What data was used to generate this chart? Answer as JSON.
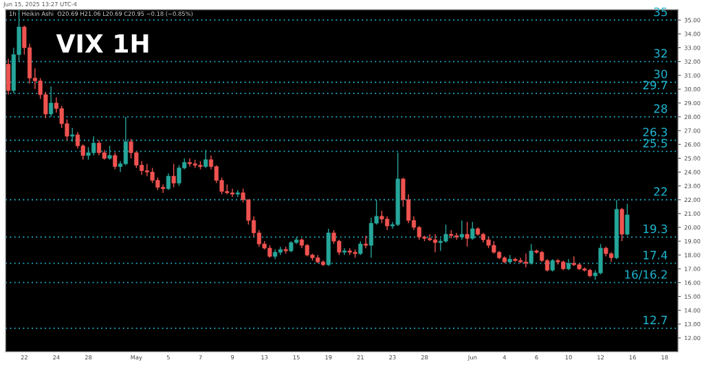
{
  "chart_data": {
    "type": "candlestick",
    "title": "VIX 1H",
    "annotations": [
      "Jun 15, 2025 13:27 UTC-4",
      "1h · Heikin Ashi  O20.69 H21.06 L20.69 C20.95 −0.18 (−0.85%)"
    ],
    "categories": [
      null,
      null,
      null,
      "22",
      null,
      null,
      null,
      null,
      null,
      "24",
      null,
      null,
      null,
      null,
      null,
      "28",
      null,
      null,
      null,
      null,
      null,
      null,
      null,
      null,
      "May",
      null,
      null,
      null,
      null,
      null,
      "5",
      null,
      null,
      null,
      null,
      null,
      "7",
      null,
      null,
      null,
      null,
      null,
      "9",
      null,
      null,
      null,
      null,
      null,
      "13",
      null,
      null,
      null,
      null,
      null,
      "15",
      null,
      null,
      null,
      null,
      null,
      "19",
      null,
      null,
      null,
      null,
      null,
      "21",
      null,
      null,
      null,
      null,
      null,
      "23",
      null,
      null,
      null,
      null,
      null,
      "28",
      null,
      null,
      null,
      null,
      null,
      null,
      null,
      null,
      "Jun",
      null,
      null,
      null,
      null,
      null,
      "4",
      null,
      null,
      null,
      null,
      null,
      "6",
      null,
      null,
      null,
      null,
      null,
      "10",
      null,
      null,
      null,
      null,
      null,
      "12",
      null,
      null,
      null,
      null,
      null,
      "16",
      null,
      null,
      null,
      null,
      null,
      "18",
      null,
      null
    ],
    "ohlc": [
      [
        31.8,
        32.2,
        29.6,
        29.9
      ],
      [
        29.9,
        33.0,
        29.7,
        32.5
      ],
      [
        32.5,
        35.7,
        32.0,
        34.5
      ],
      [
        34.5,
        34.6,
        32.5,
        33.0
      ],
      [
        33.0,
        33.3,
        30.4,
        30.8
      ],
      [
        30.8,
        31.5,
        30.0,
        30.6
      ],
      [
        30.6,
        30.8,
        29.3,
        29.6
      ],
      [
        29.6,
        29.8,
        27.9,
        28.2
      ],
      [
        28.2,
        30.2,
        28.0,
        29.0
      ],
      [
        29.0,
        29.4,
        28.3,
        28.6
      ],
      [
        28.6,
        28.8,
        27.2,
        27.5
      ],
      [
        27.5,
        27.8,
        26.3,
        26.6
      ],
      [
        26.6,
        27.2,
        26.2,
        26.7
      ],
      [
        26.7,
        26.9,
        25.7,
        25.9
      ],
      [
        25.9,
        26.0,
        24.9,
        25.2
      ],
      [
        25.2,
        25.8,
        24.9,
        25.4
      ],
      [
        25.4,
        26.6,
        25.2,
        26.1
      ],
      [
        26.1,
        26.3,
        25.2,
        25.4
      ],
      [
        25.4,
        25.6,
        24.9,
        25.0
      ],
      [
        25.0,
        25.9,
        24.9,
        25.2
      ],
      [
        25.2,
        25.4,
        24.2,
        24.4
      ],
      [
        24.4,
        24.8,
        24.0,
        24.6
      ],
      [
        24.6,
        28.0,
        24.5,
        26.2
      ],
      [
        26.2,
        26.4,
        25.0,
        25.4
      ],
      [
        25.4,
        25.5,
        24.3,
        24.5
      ],
      [
        24.5,
        24.8,
        23.8,
        24.1
      ],
      [
        24.1,
        24.6,
        23.7,
        24.0
      ],
      [
        24.0,
        24.3,
        23.2,
        23.4
      ],
      [
        23.4,
        23.6,
        22.7,
        22.9
      ],
      [
        22.9,
        23.1,
        22.5,
        22.8
      ],
      [
        22.8,
        23.9,
        22.7,
        23.7
      ],
      [
        23.7,
        24.6,
        22.9,
        23.2
      ],
      [
        23.2,
        24.5,
        23.0,
        24.3
      ],
      [
        24.3,
        25.0,
        24.2,
        24.7
      ],
      [
        24.7,
        25.0,
        24.4,
        24.6
      ],
      [
        24.6,
        24.9,
        24.3,
        24.5
      ],
      [
        24.5,
        24.8,
        24.2,
        24.4
      ],
      [
        24.4,
        25.6,
        24.3,
        24.9
      ],
      [
        24.9,
        25.2,
        24.2,
        24.4
      ],
      [
        24.4,
        24.5,
        23.2,
        23.4
      ],
      [
        23.4,
        23.6,
        22.4,
        22.6
      ],
      [
        22.6,
        23.1,
        22.4,
        22.5
      ],
      [
        22.5,
        22.8,
        22.2,
        22.4
      ],
      [
        22.4,
        22.7,
        22.2,
        22.5
      ],
      [
        22.5,
        22.8,
        21.8,
        22.0
      ],
      [
        22.0,
        22.0,
        20.2,
        20.5
      ],
      [
        20.5,
        20.8,
        19.3,
        19.6
      ],
      [
        19.6,
        19.8,
        18.6,
        18.8
      ],
      [
        18.8,
        19.0,
        18.4,
        18.5
      ],
      [
        18.5,
        18.7,
        17.8,
        17.9
      ],
      [
        17.9,
        18.4,
        17.7,
        18.2
      ],
      [
        18.2,
        18.6,
        18.0,
        18.4
      ],
      [
        18.4,
        18.6,
        18.1,
        18.3
      ],
      [
        18.3,
        19.0,
        18.2,
        18.9
      ],
      [
        18.9,
        19.3,
        18.8,
        19.1
      ],
      [
        19.1,
        19.2,
        18.5,
        18.7
      ],
      [
        18.7,
        18.8,
        17.9,
        18.0
      ],
      [
        18.0,
        18.1,
        17.6,
        17.8
      ],
      [
        17.8,
        18.0,
        17.4,
        17.5
      ],
      [
        17.5,
        17.6,
        17.2,
        17.3
      ],
      [
        17.3,
        19.9,
        17.2,
        19.6
      ],
      [
        19.6,
        19.8,
        18.8,
        19.0
      ],
      [
        19.0,
        19.1,
        18.0,
        18.2
      ],
      [
        18.2,
        18.5,
        18.0,
        18.3
      ],
      [
        18.3,
        18.5,
        18.0,
        18.2
      ],
      [
        18.2,
        18.4,
        17.8,
        18.1
      ],
      [
        18.1,
        19.0,
        18.0,
        18.8
      ],
      [
        18.8,
        19.4,
        18.5,
        18.7
      ],
      [
        18.7,
        20.7,
        17.8,
        20.3
      ],
      [
        20.3,
        22.0,
        20.2,
        20.8
      ],
      [
        20.8,
        21.2,
        20.3,
        20.6
      ],
      [
        20.6,
        20.8,
        19.8,
        20.1
      ],
      [
        20.1,
        20.4,
        19.9,
        20.2
      ],
      [
        20.2,
        25.4,
        20.1,
        23.5
      ],
      [
        23.5,
        23.6,
        21.5,
        22.0
      ],
      [
        22.0,
        22.4,
        20.3,
        20.5
      ],
      [
        20.5,
        20.8,
        19.8,
        20.0
      ],
      [
        20.0,
        20.1,
        19.1,
        19.3
      ],
      [
        19.3,
        19.4,
        19.0,
        19.2
      ],
      [
        19.2,
        19.5,
        19.0,
        19.1
      ],
      [
        19.1,
        19.5,
        18.2,
        18.9
      ],
      [
        18.9,
        19.2,
        18.3,
        19.0
      ],
      [
        19.0,
        20.2,
        18.9,
        19.5
      ],
      [
        19.5,
        19.8,
        19.2,
        19.4
      ],
      [
        19.4,
        19.6,
        19.1,
        19.3
      ],
      [
        19.3,
        20.5,
        19.1,
        19.5
      ],
      [
        19.5,
        20.4,
        18.6,
        19.2
      ],
      [
        19.2,
        20.4,
        19.1,
        19.9
      ],
      [
        19.9,
        20.0,
        19.4,
        19.5
      ],
      [
        19.5,
        19.6,
        18.9,
        19.1
      ],
      [
        19.1,
        19.3,
        18.5,
        18.7
      ],
      [
        18.7,
        19.0,
        18.1,
        18.2
      ],
      [
        18.2,
        18.3,
        17.7,
        17.8
      ],
      [
        17.8,
        17.9,
        17.4,
        17.5
      ],
      [
        17.5,
        18.0,
        17.4,
        17.7
      ],
      [
        17.7,
        17.8,
        17.5,
        17.6
      ],
      [
        17.6,
        17.8,
        17.4,
        17.5
      ],
      [
        17.5,
        18.1,
        17.1,
        17.4
      ],
      [
        17.4,
        18.8,
        17.3,
        18.3
      ],
      [
        18.3,
        18.4,
        18.1,
        18.2
      ],
      [
        18.2,
        18.3,
        17.5,
        17.6
      ],
      [
        17.6,
        17.7,
        16.8,
        16.9
      ],
      [
        16.9,
        17.7,
        16.8,
        17.6
      ],
      [
        17.6,
        17.7,
        17.3,
        17.5
      ],
      [
        17.5,
        17.6,
        16.9,
        17.0
      ],
      [
        17.0,
        17.7,
        16.9,
        17.4
      ],
      [
        17.4,
        17.9,
        17.2,
        17.3
      ],
      [
        17.3,
        17.4,
        16.9,
        17.0
      ],
      [
        17.0,
        17.1,
        16.8,
        16.9
      ],
      [
        16.9,
        17.0,
        16.4,
        16.5
      ],
      [
        16.5,
        16.9,
        16.2,
        16.7
      ],
      [
        16.7,
        18.8,
        16.6,
        18.5
      ],
      [
        18.5,
        18.6,
        17.9,
        18.1
      ],
      [
        18.1,
        18.2,
        17.5,
        17.8
      ],
      [
        17.8,
        22.0,
        17.7,
        21.3
      ],
      [
        21.3,
        21.4,
        19.0,
        19.5
      ],
      [
        19.5,
        21.7,
        19.4,
        20.9
      ],
      null,
      null,
      null,
      null,
      null,
      null,
      null,
      null,
      null
    ],
    "colors": [
      "#ef5350",
      "#26a69a",
      "#26a69a",
      "#ef5350",
      "#ef5350",
      "#ef5350",
      "#ef5350",
      "#ef5350",
      "#26a69a",
      "#ef5350",
      "#ef5350",
      "#ef5350",
      "#26a69a",
      "#ef5350",
      "#ef5350",
      "#26a69a",
      "#26a69a",
      "#ef5350",
      "#ef5350",
      "#26a69a",
      "#ef5350",
      "#26a69a",
      "#26a69a",
      "#ef5350",
      "#ef5350",
      "#ef5350",
      "#ef5350",
      "#ef5350",
      "#ef5350",
      "#ef5350",
      "#26a69a",
      "#ef5350",
      "#26a69a",
      "#26a69a",
      "#ef5350",
      "#ef5350",
      "#ef5350",
      "#26a69a",
      "#ef5350",
      "#ef5350",
      "#ef5350",
      "#ef5350",
      "#ef5350",
      "#26a69a",
      "#ef5350",
      "#ef5350",
      "#ef5350",
      "#ef5350",
      "#ef5350",
      "#ef5350",
      "#26a69a",
      "#26a69a",
      "#ef5350",
      "#26a69a",
      "#26a69a",
      "#ef5350",
      "#ef5350",
      "#ef5350",
      "#ef5350",
      "#ef5350",
      "#26a69a",
      "#ef5350",
      "#ef5350",
      "#26a69a",
      "#ef5350",
      "#ef5350",
      "#26a69a",
      "#ef5350",
      "#26a69a",
      "#26a69a",
      "#ef5350",
      "#ef5350",
      "#26a69a",
      "#26a69a",
      "#ef5350",
      "#ef5350",
      "#ef5350",
      "#ef5350",
      "#ef5350",
      "#ef5350",
      "#ef5350",
      "#26a69a",
      "#26a69a",
      "#ef5350",
      "#ef5350",
      "#26a69a",
      "#ef5350",
      "#26a69a",
      "#ef5350",
      "#ef5350",
      "#ef5350",
      "#ef5350",
      "#ef5350",
      "#ef5350",
      "#26a69a",
      "#ef5350",
      "#ef5350",
      "#ef5350",
      "#26a69a",
      "#ef5350",
      "#ef5350",
      "#ef5350",
      "#26a69a",
      "#ef5350",
      "#ef5350",
      "#26a69a",
      "#ef5350",
      "#ef5350",
      "#ef5350",
      "#ef5350",
      "#26a69a",
      "#26a69a",
      "#ef5350",
      "#ef5350",
      "#26a69a",
      "#ef5350",
      "#26a69a",
      null,
      null,
      null,
      null,
      null,
      null,
      null,
      null,
      null
    ],
    "ylim": [
      11,
      35.75
    ],
    "yticks": [
      {
        "value": 12,
        "label": "12.00"
      },
      {
        "value": 13,
        "label": "13.00"
      },
      {
        "value": 14,
        "label": "14.00"
      },
      {
        "value": 15,
        "label": "15.00"
      },
      {
        "value": 16,
        "label": "16.00"
      },
      {
        "value": 17,
        "label": "17.00"
      },
      {
        "value": 18,
        "label": "18.00"
      },
      {
        "value": 19,
        "label": "19.00"
      },
      {
        "value": 20,
        "label": "20.00"
      },
      {
        "value": 21,
        "label": "21.00"
      },
      {
        "value": 22,
        "label": "22.00"
      },
      {
        "value": 23,
        "label": "23.00"
      },
      {
        "value": 24,
        "label": "24.00"
      },
      {
        "value": 25,
        "label": "25.00"
      },
      {
        "value": 26,
        "label": "26.00"
      },
      {
        "value": 27,
        "label": "27.00"
      },
      {
        "value": 28,
        "label": "28.00"
      },
      {
        "value": 29,
        "label": "29.00"
      },
      {
        "value": 30,
        "label": "30.00"
      },
      {
        "value": 31,
        "label": "31.00"
      },
      {
        "value": 32,
        "label": "32.00"
      },
      {
        "value": 33,
        "label": "33.00"
      },
      {
        "value": 34,
        "label": "34.00"
      },
      {
        "value": 35,
        "label": "35.00"
      }
    ],
    "ref_lines": [
      {
        "axis": "y",
        "value": 35,
        "label": "35",
        "color": "#1eb6d0",
        "line_style": "dotted"
      },
      {
        "axis": "y",
        "value": 32,
        "label": "32",
        "color": "#1eb6d0",
        "line_style": "dotted"
      },
      {
        "axis": "y",
        "value": 30.5,
        "label": "30",
        "color": "#1eb6d0",
        "line_style": "dotted"
      },
      {
        "axis": "y",
        "value": 29.7,
        "label": "29.7",
        "color": "#1eb6d0",
        "line_style": "dotted"
      },
      {
        "axis": "y",
        "value": 28,
        "label": "28",
        "color": "#1eb6d0",
        "line_style": "dotted"
      },
      {
        "axis": "y",
        "value": 26.3,
        "label": "26.3",
        "color": "#1eb6d0",
        "line_style": "dotted"
      },
      {
        "axis": "y",
        "value": 25.5,
        "label": "25.5",
        "color": "#1eb6d0",
        "line_style": "dotted"
      },
      {
        "axis": "y",
        "value": 22,
        "label": "22",
        "color": "#1eb6d0",
        "line_style": "dotted"
      },
      {
        "axis": "y",
        "value": 19.3,
        "label": "19.3",
        "color": "#1eb6d0",
        "line_style": "dotted"
      },
      {
        "axis": "y",
        "value": 17.4,
        "label": "17.4",
        "color": "#1eb6d0",
        "line_style": "dotted"
      },
      {
        "axis": "y",
        "value": 16,
        "label": "16/16.2",
        "color": "#1eb6d0",
        "line_style": "dotted"
      },
      {
        "axis": "y",
        "value": 12.7,
        "label": "12.7",
        "color": "#1eb6d0",
        "line_style": "dotted"
      }
    ],
    "grid": false,
    "legend": false
  }
}
